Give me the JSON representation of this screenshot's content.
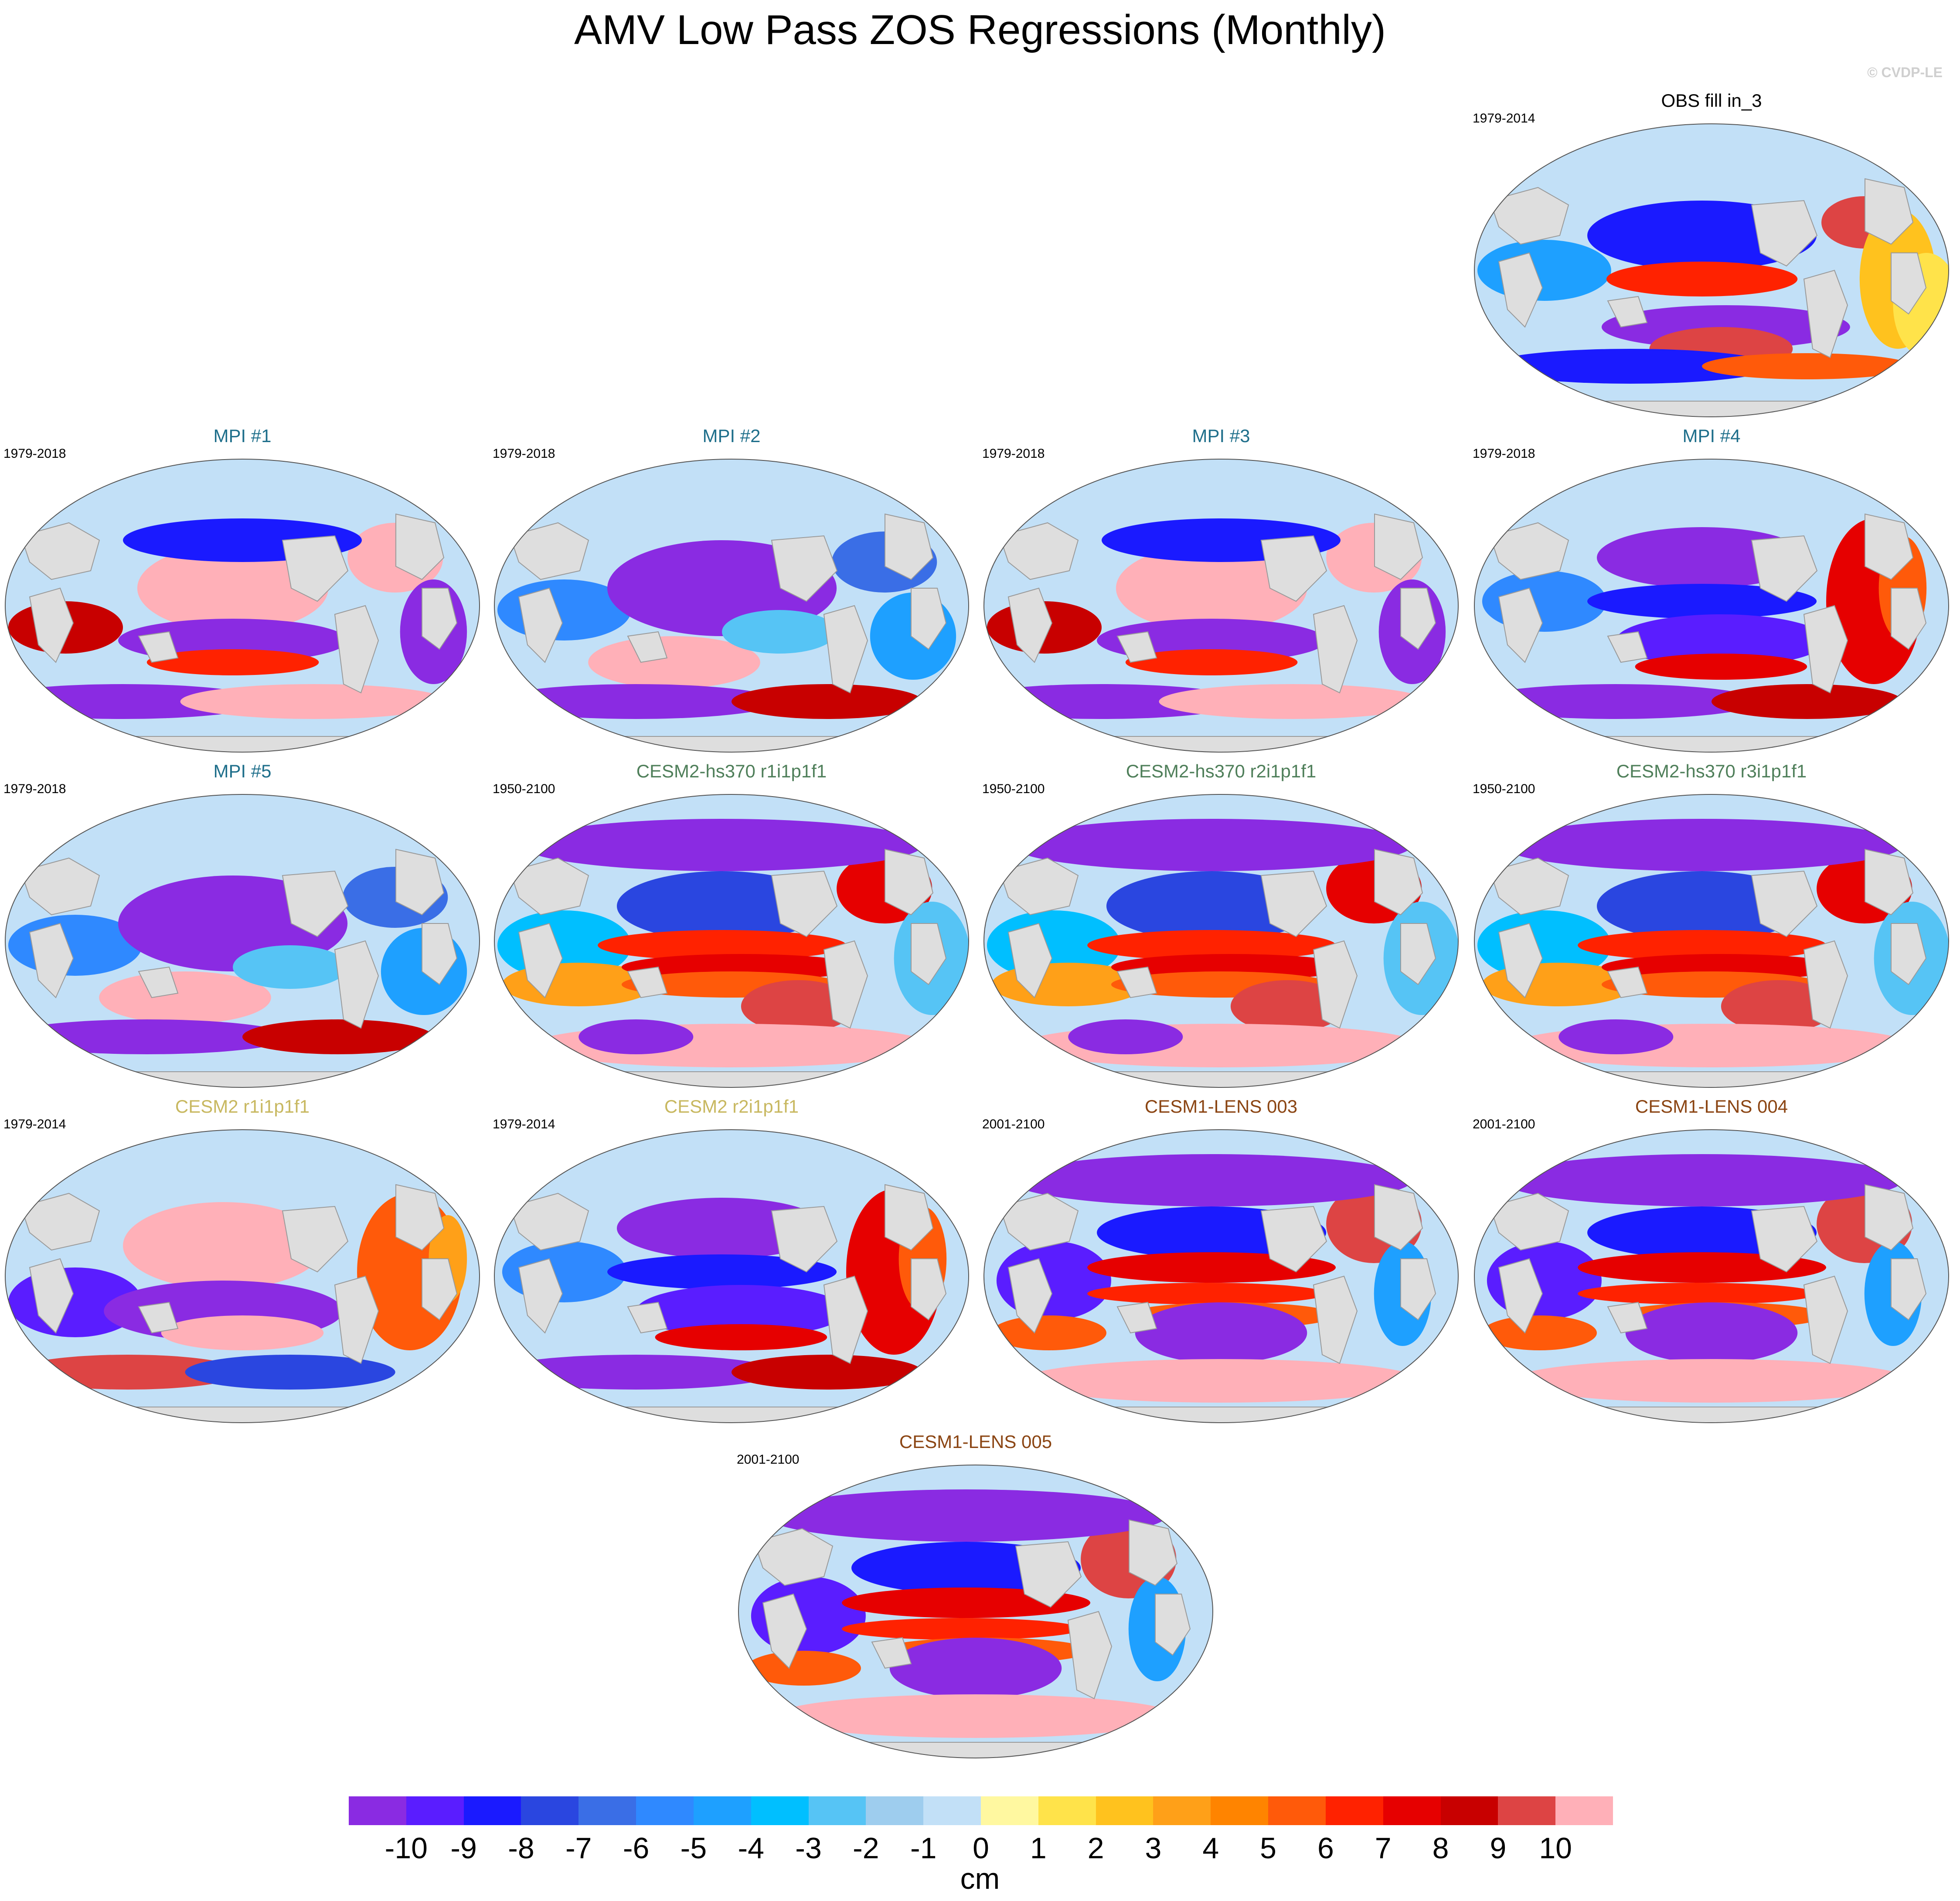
{
  "figure": {
    "title": "AMV Low Pass ZOS Regressions (Monthly)",
    "watermark": "© CVDP-LE"
  },
  "colors": {
    "land": "#dedede",
    "coast": "#9a9a9a",
    "obs_title": "#000000",
    "mpi_title": "#1f6f8b",
    "cesm2hs_title": "#4f7f5a",
    "cesm2_title": "#c8b860",
    "cesm1_title": "#8b4513"
  },
  "panels": [
    {
      "id": "obs",
      "title": "OBS fill in_3",
      "years": "1979-2014",
      "group": "obs",
      "pattern": 0
    },
    {
      "id": "mpi1",
      "title": "MPI #1",
      "years": "1979-2018",
      "group": "mpi",
      "pattern": 1
    },
    {
      "id": "mpi2",
      "title": "MPI #2",
      "years": "1979-2018",
      "group": "mpi",
      "pattern": 2
    },
    {
      "id": "mpi3",
      "title": "MPI #3",
      "years": "1979-2018",
      "group": "mpi",
      "pattern": 1
    },
    {
      "id": "mpi4",
      "title": "MPI #4",
      "years": "1979-2018",
      "group": "mpi",
      "pattern": 3
    },
    {
      "id": "mpi5",
      "title": "MPI #5",
      "years": "1979-2018",
      "group": "mpi",
      "pattern": 2
    },
    {
      "id": "hs1",
      "title": "CESM2-hs370 r1i1p1f1",
      "years": "1950-2100",
      "group": "cesm2hs",
      "pattern": 4
    },
    {
      "id": "hs2",
      "title": "CESM2-hs370 r2i1p1f1",
      "years": "1950-2100",
      "group": "cesm2hs",
      "pattern": 4
    },
    {
      "id": "hs3",
      "title": "CESM2-hs370 r3i1p1f1",
      "years": "1950-2100",
      "group": "cesm2hs",
      "pattern": 4
    },
    {
      "id": "c2r1",
      "title": "CESM2 r1i1p1f1",
      "years": "1979-2014",
      "group": "cesm2",
      "pattern": 5
    },
    {
      "id": "c2r2",
      "title": "CESM2 r2i1p1f1",
      "years": "1979-2014",
      "group": "cesm2",
      "pattern": 3
    },
    {
      "id": "l003",
      "title": "CESM1-LENS 003",
      "years": "2001-2100",
      "group": "cesm1",
      "pattern": 6
    },
    {
      "id": "l004",
      "title": "CESM1-LENS 004",
      "years": "2001-2100",
      "group": "cesm1",
      "pattern": 6
    },
    {
      "id": "l005",
      "title": "CESM1-LENS 005",
      "years": "2001-2100",
      "group": "cesm1",
      "pattern": 6
    }
  ],
  "colorbar": {
    "units": "cm",
    "labels": [
      "-10",
      "-9",
      "-8",
      "-7",
      "-6",
      "-5",
      "-4",
      "-3",
      "-2",
      "-1",
      "0",
      "1",
      "2",
      "3",
      "4",
      "5",
      "6",
      "7",
      "8",
      "9",
      "10"
    ],
    "colors": [
      "#8a2be2",
      "#5a1dff",
      "#1a1aff",
      "#2a46e0",
      "#3a6ee6",
      "#2f89ff",
      "#1ea0ff",
      "#00bfff",
      "#56c4f5",
      "#9ecdee",
      "#c2e0f7",
      "#fff8a0",
      "#ffe34a",
      "#ffc21e",
      "#ffa018",
      "#ff8400",
      "#ff5a0a",
      "#ff2200",
      "#e60000",
      "#c80000",
      "#dd4444",
      "#ffb0b8"
    ]
  }
}
